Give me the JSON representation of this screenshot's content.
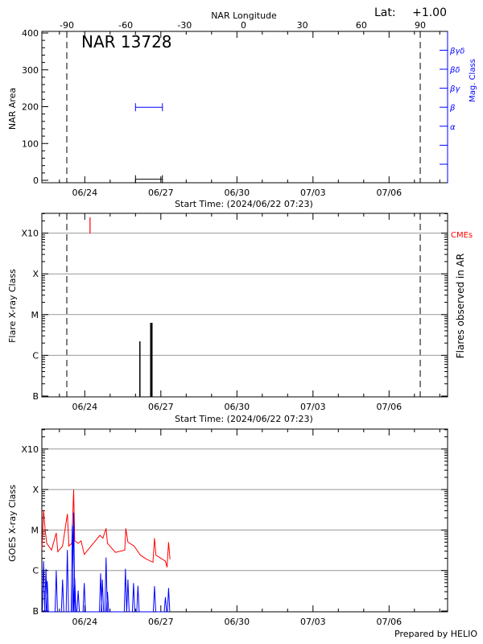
{
  "header": {
    "top_axis_label": "NAR Longitude",
    "lat_label": "Lat:",
    "lat_value": "+1.00",
    "region_title": "NAR 13728"
  },
  "footer": {
    "credit": "Prepared by HELIO"
  },
  "colors": {
    "axes": "#000000",
    "grid": "#999999",
    "mag_class": "#0000ff",
    "cme": "#ff0000",
    "goes_long": "#ff0000",
    "goes_short": "#0000ff"
  },
  "chart_data": [
    {
      "type": "line",
      "panel": "area",
      "start_time": "2024-06-22T07:23",
      "span_days": 16,
      "xlabel": "Start Time: (2024/06/22 07:23)",
      "x_tick_labels": [
        "06/24",
        "06/27",
        "06/30",
        "07/03",
        "07/06"
      ],
      "ylabel": "NAR Area",
      "ylim": [
        0,
        400
      ],
      "y_tick_labels": [
        "0",
        "100",
        "200",
        "300",
        "400"
      ],
      "top_axis": {
        "label": "NAR Longitude",
        "tick_labels": [
          "-90",
          "-60",
          "-30",
          "0",
          "30",
          "60",
          "90"
        ]
      },
      "limb_times": [
        "2024-06-23T07:00",
        "2024-07-07T05:30"
      ],
      "right_axis": {
        "label": "Mag. Class",
        "classes": [
          "",
          "",
          "α",
          "β",
          "βγ",
          "βδ",
          "βγδ"
        ]
      },
      "series": [
        {
          "kind": "area",
          "points": [
            [
              "2024-06-26T00:00",
              3
            ],
            [
              "2024-06-27T01:30",
              3
            ]
          ]
        },
        {
          "kind": "mag_class",
          "value": "β",
          "points": [
            [
              "2024-06-26T00:00",
              "β"
            ],
            [
              "2024-06-27T01:30",
              "β"
            ]
          ]
        }
      ]
    },
    {
      "type": "bar",
      "panel": "flares",
      "xlabel": "Start Time: (2024/06/22 07:23)",
      "x_tick_labels": [
        "06/24",
        "06/27",
        "06/30",
        "07/03",
        "07/06"
      ],
      "ylabel": "Flare X-ray Class",
      "right_label": "Flares observed in AR",
      "y_tick_labels": [
        "B",
        "C",
        "M",
        "X",
        "X10"
      ],
      "ylim": [
        1e-07,
        0.001
      ],
      "y_scale": "log",
      "grid": true,
      "cme_label": "CMEs",
      "flares": [
        {
          "time": "2024-06-26T04:10",
          "flux": 2.2e-06
        },
        {
          "time": "2024-06-26T15:00",
          "flux": 6.3e-06
        }
      ],
      "cmes": [
        {
          "time": "2024-06-24T05:00"
        }
      ]
    },
    {
      "type": "line",
      "panel": "goes",
      "x_tick_labels": [
        "06/24",
        "06/27",
        "06/30",
        "07/03",
        "07/06"
      ],
      "ylabel": "GOES X-ray Class",
      "y_tick_labels": [
        "B",
        "C",
        "M",
        "X",
        "X10"
      ],
      "ylim": [
        1e-07,
        0.001
      ],
      "y_scale": "log",
      "grid": true,
      "series": [
        {
          "channel": "long",
          "points": [
            [
              "2024-06-22T07:30",
              3.5e-06
            ],
            [
              "2024-06-22T09:00",
              3.1e-05
            ],
            [
              "2024-06-22T10:30",
              1e-05
            ],
            [
              "2024-06-22T12:00",
              4.7e-06
            ],
            [
              "2024-06-22T16:30",
              3.2e-06
            ],
            [
              "2024-06-22T21:00",
              8.5e-06
            ],
            [
              "2024-06-22T22:30",
              2.9e-06
            ],
            [
              "2024-06-23T03:00",
              4e-06
            ],
            [
              "2024-06-23T07:30",
              2.5e-05
            ],
            [
              "2024-06-23T09:00",
              4e-06
            ],
            [
              "2024-06-23T11:45",
              4.7e-06
            ],
            [
              "2024-06-23T13:30",
              0.0001
            ],
            [
              "2024-06-23T14:30",
              5.4e-06
            ],
            [
              "2024-06-23T17:45",
              4.7e-06
            ],
            [
              "2024-06-23T20:30",
              5.4e-06
            ],
            [
              "2024-06-23T23:30",
              2.5e-06
            ],
            [
              "2024-06-24T14:20",
              7.4e-06
            ],
            [
              "2024-06-24T17:10",
              6.3e-06
            ],
            [
              "2024-06-24T20:10",
              1.1e-05
            ],
            [
              "2024-06-24T21:30",
              4.7e-06
            ],
            [
              "2024-06-25T05:00",
              2.8e-06
            ],
            [
              "2024-06-25T13:50",
              3.2e-06
            ],
            [
              "2024-06-25T14:50",
              1.1e-05
            ],
            [
              "2024-06-25T16:50",
              5e-06
            ],
            [
              "2024-06-25T22:45",
              4e-06
            ],
            [
              "2024-06-26T04:40",
              2.4e-06
            ],
            [
              "2024-06-26T10:30",
              1.9e-06
            ],
            [
              "2024-06-26T16:30",
              1.6e-06
            ],
            [
              "2024-06-26T18:00",
              6.3e-06
            ],
            [
              "2024-06-26T19:20",
              2.4e-06
            ],
            [
              "2024-06-27T04:20",
              1.7e-06
            ],
            [
              "2024-06-27T05:50",
              1.2e-06
            ],
            [
              "2024-06-27T07:20",
              5e-06
            ],
            [
              "2024-06-27T08:40",
              1.9e-06
            ]
          ]
        },
        {
          "channel": "short",
          "points": [
            [
              "2024-06-22T09:00",
              1.7e-06
            ],
            [
              "2024-06-22T11:15",
              1.1e-06
            ],
            [
              "2024-06-22T12:30",
              5.5e-07
            ],
            [
              "2024-06-22T21:00",
              1e-06
            ],
            [
              "2024-06-23T03:00",
              6e-07
            ],
            [
              "2024-06-23T07:30",
              3.2e-06
            ],
            [
              "2024-06-23T12:15",
              1.3e-05
            ],
            [
              "2024-06-23T13:30",
              2.7e-05
            ],
            [
              "2024-06-23T14:30",
              6.4e-07
            ],
            [
              "2024-06-23T17:45",
              3.2e-07
            ],
            [
              "2024-06-23T23:30",
              4.9e-07
            ],
            [
              "2024-06-24T15:00",
              8.5e-07
            ],
            [
              "2024-06-24T16:40",
              6e-07
            ],
            [
              "2024-06-24T20:10",
              2.1e-06
            ],
            [
              "2024-06-24T21:30",
              3e-07
            ],
            [
              "2024-06-25T14:30",
              1.1e-06
            ],
            [
              "2024-06-25T16:50",
              6e-07
            ],
            [
              "2024-06-25T22:10",
              4.9e-07
            ],
            [
              "2024-06-26T02:20",
              4.2e-07
            ],
            [
              "2024-06-26T18:00",
              4.1e-07
            ],
            [
              "2024-06-27T04:20",
              2.2e-07
            ],
            [
              "2024-06-27T07:20",
              3.7e-07
            ]
          ]
        }
      ]
    }
  ]
}
